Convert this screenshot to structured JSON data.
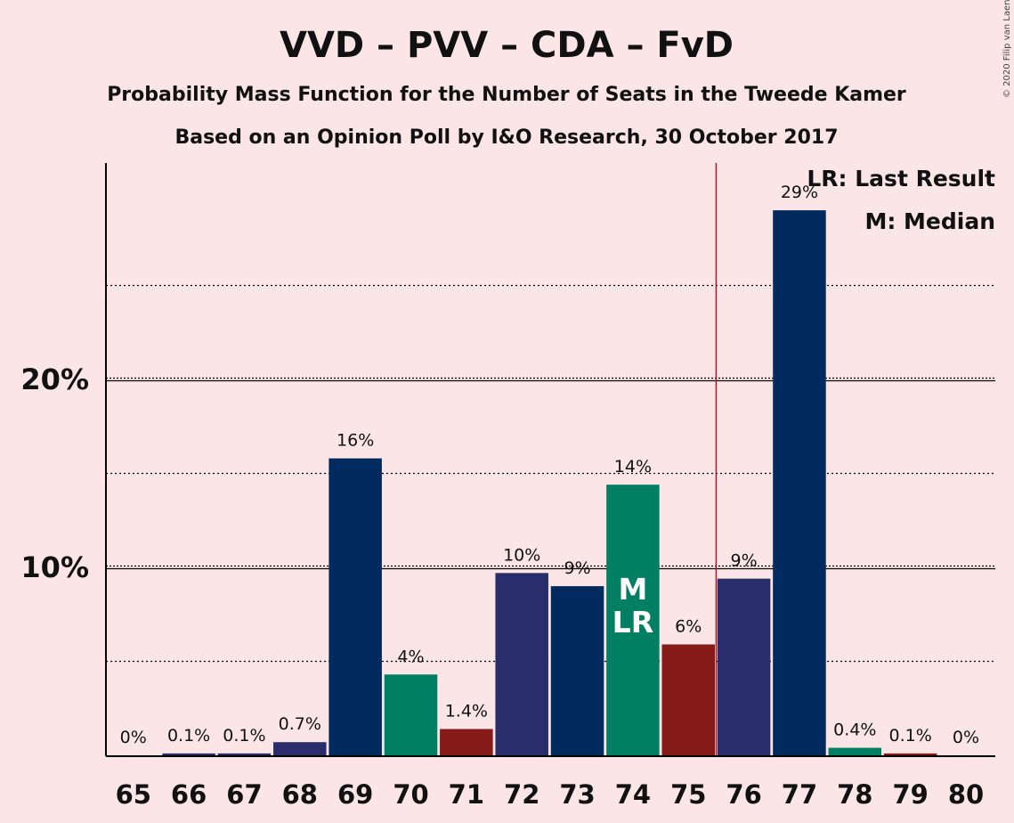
{
  "title": "VVD – PVV – CDA – FvD",
  "subtitle": "Probability Mass Function for the Number of Seats in the Tweede Kamer",
  "subtitle2": "Based on an Opinion Poll by I&O Research, 30 October 2017",
  "copyright": "© 2020 Filip van Laenen",
  "legend": {
    "lr": "LR: Last Result",
    "m": "M: Median"
  },
  "chart_data": {
    "type": "bar",
    "xlabel": "",
    "ylabel": "",
    "categories": [
      "65",
      "66",
      "67",
      "68",
      "69",
      "70",
      "71",
      "72",
      "73",
      "74",
      "75",
      "76",
      "77",
      "78",
      "79",
      "80"
    ],
    "values": [
      0,
      0.1,
      0.1,
      0.7,
      15.8,
      4.3,
      1.4,
      9.7,
      9.0,
      14.4,
      5.9,
      9.4,
      29.0,
      0.4,
      0.1,
      0
    ],
    "data_labels": [
      "0%",
      "0.1%",
      "0.1%",
      "0.7%",
      "16%",
      "4%",
      "1.4%",
      "10%",
      "9%",
      "14%",
      "6%",
      "9%",
      "29%",
      "0.4%",
      "0.1%",
      "0%"
    ],
    "bar_colors": [
      "#2a2d6c",
      "#2a2d6c",
      "#2a2d6c",
      "#2a2d6c",
      "#012a5e",
      "#007f62",
      "#861a19",
      "#2a2d6c",
      "#012a5e",
      "#007f62",
      "#861a19",
      "#2a2d6c",
      "#012a5e",
      "#007f62",
      "#861a19",
      "#2a2d6c"
    ],
    "ylim": [
      0,
      31.5
    ],
    "yticks": [
      10,
      20
    ],
    "ytick_labels": [
      "10%",
      "20%"
    ],
    "minor_gridlines": [
      5,
      15,
      25
    ],
    "majority_line_between": [
      "75",
      "76"
    ],
    "majority_line_color": "#a01c2b",
    "median_seat": "74",
    "last_result_seat": "74",
    "median_mark": "M",
    "last_result_mark": "LR",
    "legend_placement": "top-right"
  }
}
